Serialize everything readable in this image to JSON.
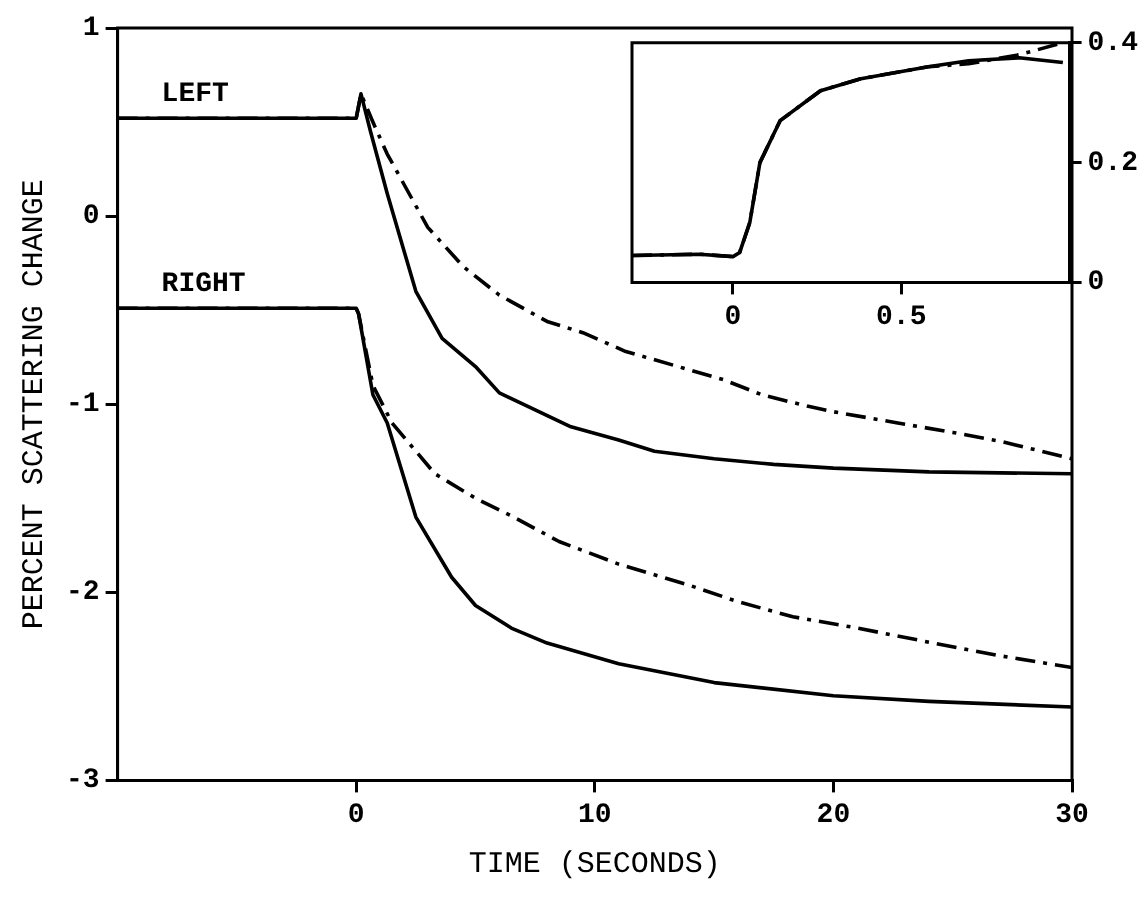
{
  "chart_data": [
    {
      "type": "line",
      "xlabel": "TIME (SECONDS)",
      "ylabel": "PERCENT SCATTERING CHANGE",
      "xlim": [
        -10,
        30
      ],
      "ylim": [
        -3,
        1
      ],
      "xticks": [
        0,
        10,
        20,
        30
      ],
      "yticks": [
        -3,
        -2,
        -1,
        0,
        1
      ],
      "annotations": [
        "LEFT",
        "RIGHT"
      ],
      "series": [
        {
          "color": "#000000",
          "line_style": "solid",
          "x": [
            -10,
            0,
            0.2,
            0.6,
            1.3,
            2.5,
            3.6,
            5,
            6,
            7.5,
            9,
            11,
            12.5,
            15,
            17.5,
            20,
            24,
            30
          ],
          "values": [
            0.52,
            0.52,
            0.65,
            0.45,
            0.12,
            -0.4,
            -0.65,
            -0.8,
            -0.94,
            -1.03,
            -1.12,
            -1.19,
            -1.25,
            -1.29,
            -1.32,
            -1.34,
            -1.36,
            -1.37
          ]
        },
        {
          "color": "#000000",
          "line_style": "dashed",
          "x": [
            -10,
            0,
            0.2,
            0.7,
            1.3,
            3,
            4.5,
            6,
            8,
            9.5,
            11.3,
            12.4,
            15.4,
            17,
            18.9,
            20,
            22.7,
            25,
            27.1,
            30
          ],
          "values": [
            0.52,
            0.52,
            0.65,
            0.5,
            0.33,
            -0.06,
            -0.27,
            -0.42,
            -0.56,
            -0.62,
            -0.72,
            -0.76,
            -0.87,
            -0.95,
            -1.01,
            -1.04,
            -1.1,
            -1.15,
            -1.2,
            -1.29
          ]
        },
        {
          "color": "#000000",
          "line_style": "solid",
          "x": [
            -10,
            0,
            0.1,
            0.7,
            1.3,
            2.5,
            4,
            5,
            6.5,
            8,
            11,
            15,
            20,
            24,
            30
          ],
          "values": [
            -0.49,
            -0.49,
            -0.52,
            -0.95,
            -1.1,
            -1.6,
            -1.92,
            -2.07,
            -2.19,
            -2.27,
            -2.38,
            -2.48,
            -2.55,
            -2.58,
            -2.61
          ]
        },
        {
          "color": "#000000",
          "line_style": "dashed",
          "x": [
            -10,
            0,
            0.1,
            0.7,
            1.5,
            3.3,
            5,
            6.6,
            8.5,
            11,
            13.9,
            16,
            18.3,
            21,
            24.2,
            27.1,
            30
          ],
          "values": [
            -0.49,
            -0.49,
            -0.52,
            -0.9,
            -1.1,
            -1.37,
            -1.5,
            -1.6,
            -1.73,
            -1.85,
            -1.96,
            -2.05,
            -2.13,
            -2.19,
            -2.27,
            -2.34,
            -2.4
          ]
        }
      ]
    },
    {
      "type": "line",
      "xlim": [
        -0.3,
        1
      ],
      "xticks": [
        0,
        0.5
      ],
      "y2lim": [
        0,
        0.4
      ],
      "y2ticks": [
        0,
        0.2,
        0.4
      ],
      "series": [
        {
          "color": "#000000",
          "line_style": "solid",
          "axis": "y2",
          "x": [
            -0.3,
            -0.1,
            0,
            0.02,
            0.05,
            0.08,
            0.14,
            0.26,
            0.38,
            0.58,
            0.7,
            0.85,
            0.98
          ],
          "values": [
            0.045,
            0.047,
            0.043,
            0.05,
            0.1,
            0.2,
            0.27,
            0.32,
            0.34,
            0.36,
            0.37,
            0.375,
            0.367
          ]
        },
        {
          "color": "#000000",
          "line_style": "dashed",
          "axis": "y2",
          "x": [
            -0.3,
            -0.1,
            0,
            0.02,
            0.05,
            0.08,
            0.14,
            0.26,
            0.38,
            0.58,
            0.7,
            0.85,
            0.98
          ],
          "values": [
            0.045,
            0.047,
            0.043,
            0.05,
            0.1,
            0.2,
            0.27,
            0.32,
            0.34,
            0.36,
            0.365,
            0.38,
            0.4
          ]
        }
      ]
    }
  ]
}
